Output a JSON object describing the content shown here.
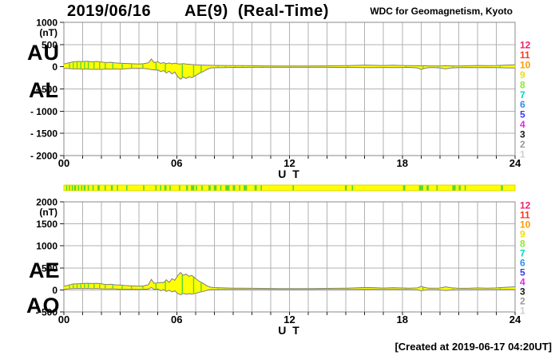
{
  "title": {
    "date": "2019/06/16",
    "main": "AE(9)  (Real-Time)",
    "credit": "WDC for Geomagnetism, Kyoto"
  },
  "footer": {
    "created": "[Created at 2019-06-17 04:20UT]"
  },
  "colors": {
    "band_fill": "#ffff00",
    "band_edge": "#7d7d7d",
    "grid": "#b2b2b2",
    "frame": "#8a8a8a",
    "tick": "#222222",
    "text": "#000000",
    "green_mark": "#55d833",
    "avail_fill": "#ffff00",
    "avail_edge": "#d8d800"
  },
  "station_scale": {
    "values": [
      12,
      11,
      10,
      9,
      8,
      7,
      6,
      5,
      4,
      3,
      2,
      1
    ],
    "colors": [
      "#e8246e",
      "#f53b1e",
      "#ff9c00",
      "#f0e000",
      "#8ee830",
      "#00d8c0",
      "#2e8ef0",
      "#3a3af5",
      "#e822e8",
      "#1a1a1a",
      "#9a9a9a",
      "#cfcfcf"
    ]
  },
  "chart_data": [
    {
      "type": "area",
      "name": "au-al-panel",
      "left_labels": [
        "AU",
        "AL"
      ],
      "unit": "(nT)",
      "ylim": [
        -2000,
        1000
      ],
      "yticks": [
        {
          "v": 1000,
          "label": "1000"
        },
        {
          "v": 500,
          "label": "500"
        },
        {
          "v": 0,
          "label": "0"
        },
        {
          "v": -500,
          "label": "- 500"
        },
        {
          "v": -1000,
          "label": "- 1000"
        },
        {
          "v": -1500,
          "label": "- 1500"
        },
        {
          "v": -2000,
          "label": "- 2000"
        }
      ],
      "xticks": [
        {
          "t": 0,
          "label": "00"
        },
        {
          "t": 6,
          "label": "06"
        },
        {
          "t": 12,
          "label": "12"
        },
        {
          "t": 18,
          "label": "18"
        },
        {
          "t": 24,
          "label": "24"
        }
      ],
      "xlabel": "U T",
      "x": [
        0,
        0.25,
        0.5,
        0.75,
        1,
        1.25,
        1.5,
        1.75,
        2,
        2.25,
        2.5,
        2.75,
        3,
        3.25,
        3.5,
        3.75,
        4,
        4.25,
        4.5,
        4.65,
        4.8,
        5,
        5.15,
        5.3,
        5.45,
        5.6,
        5.75,
        5.9,
        6.05,
        6.2,
        6.35,
        6.5,
        6.65,
        6.8,
        7,
        7.2,
        7.4,
        7.6,
        7.8,
        8,
        8.5,
        9,
        9.5,
        10,
        10.5,
        11,
        11.5,
        12,
        12.5,
        13,
        13.5,
        14,
        14.5,
        15,
        15.5,
        16,
        16.5,
        17,
        17.5,
        18,
        18.4,
        18.8,
        19,
        19.2,
        19.4,
        19.7,
        20,
        20.3,
        20.6,
        21,
        21.5,
        22,
        22.5,
        23,
        23.5,
        24
      ],
      "series": [
        {
          "name": "AU",
          "values": [
            60,
            90,
            110,
            120,
            115,
            125,
            110,
            120,
            105,
            95,
            100,
            85,
            80,
            75,
            70,
            65,
            60,
            70,
            90,
            175,
            95,
            110,
            75,
            95,
            70,
            85,
            65,
            80,
            65,
            60,
            70,
            60,
            55,
            50,
            45,
            40,
            38,
            35,
            32,
            30,
            28,
            25,
            25,
            22,
            20,
            20,
            18,
            18,
            18,
            18,
            20,
            20,
            22,
            25,
            30,
            38,
            32,
            28,
            35,
            28,
            24,
            22,
            20,
            22,
            20,
            20,
            18,
            22,
            20,
            18,
            22,
            28,
            24,
            28,
            38,
            42
          ]
        },
        {
          "name": "AL",
          "values": [
            -35,
            -40,
            -50,
            -45,
            -55,
            -50,
            -60,
            -55,
            -60,
            -50,
            -55,
            -50,
            -55,
            -45,
            -40,
            -38,
            -35,
            -40,
            -50,
            -65,
            -75,
            -70,
            -110,
            -85,
            -140,
            -100,
            -160,
            -120,
            -220,
            -280,
            -230,
            -265,
            -225,
            -245,
            -200,
            -150,
            -110,
            -60,
            -30,
            -22,
            -18,
            -15,
            -15,
            -14,
            -14,
            -13,
            -13,
            -13,
            -13,
            -13,
            -14,
            -14,
            -15,
            -15,
            -16,
            -20,
            -18,
            -16,
            -18,
            -16,
            -15,
            -25,
            -60,
            -35,
            -20,
            -18,
            -25,
            -50,
            -30,
            -18,
            -16,
            -20,
            -16,
            -18,
            -25,
            -30
          ]
        }
      ],
      "green_marks": [
        0.3,
        0.5,
        0.7,
        0.9,
        1.1,
        1.3,
        1.6,
        1.9,
        2.2,
        2.6,
        3.1,
        3.6,
        4.2,
        4.9,
        5.4,
        6.3,
        6.9,
        7.3,
        8.2,
        8.6,
        9.1,
        9.5,
        10.1,
        10.6,
        11.2,
        12.1,
        15.1,
        18.2,
        19.1,
        19.9,
        20.7,
        23.2
      ]
    },
    {
      "type": "availability",
      "name": "data-availability-bar",
      "green_marks": [
        [
          0.15,
          0.07
        ],
        [
          0.3,
          0.07
        ],
        [
          0.45,
          0.07
        ],
        [
          0.6,
          0.1
        ],
        [
          0.78,
          0.07
        ],
        [
          0.95,
          0.07
        ],
        [
          1.1,
          0.1
        ],
        [
          1.3,
          0.07
        ],
        [
          1.55,
          0.07
        ],
        [
          1.85,
          0.12
        ],
        [
          2.2,
          0.07
        ],
        [
          2.55,
          0.1
        ],
        [
          2.85,
          0.07
        ],
        [
          3.35,
          0.07
        ],
        [
          4.25,
          0.07
        ],
        [
          4.9,
          0.07
        ],
        [
          5.15,
          0.07
        ],
        [
          5.4,
          0.12
        ],
        [
          5.65,
          0.07
        ],
        [
          6.15,
          0.07
        ],
        [
          6.55,
          0.1
        ],
        [
          6.85,
          0.18
        ],
        [
          7.05,
          0.07
        ],
        [
          7.35,
          0.07
        ],
        [
          7.75,
          0.12
        ],
        [
          8.05,
          0.15
        ],
        [
          8.35,
          0.07
        ],
        [
          8.7,
          0.22
        ],
        [
          9.05,
          0.12
        ],
        [
          9.35,
          0.07
        ],
        [
          9.65,
          0.18
        ],
        [
          10.2,
          0.12
        ],
        [
          10.5,
          0.07
        ],
        [
          12.2,
          0.07
        ],
        [
          15.0,
          0.1
        ],
        [
          15.35,
          0.07
        ],
        [
          18.1,
          0.12
        ],
        [
          19.0,
          0.22
        ],
        [
          19.35,
          0.12
        ],
        [
          19.85,
          0.07
        ],
        [
          20.75,
          0.18
        ],
        [
          21.05,
          0.1
        ],
        [
          21.35,
          0.07
        ],
        [
          23.3,
          0.1
        ]
      ]
    },
    {
      "type": "area",
      "name": "ae-ao-panel",
      "left_labels": [
        "AE",
        "AO"
      ],
      "unit": "(nT)",
      "ylim": [
        -500,
        2000
      ],
      "yticks": [
        {
          "v": 2000,
          "label": "2000"
        },
        {
          "v": 1500,
          "label": "1500"
        },
        {
          "v": 1000,
          "label": "1000"
        },
        {
          "v": 500,
          "label": "500"
        },
        {
          "v": 0,
          "label": "0"
        },
        {
          "v": -500,
          "label": "- 500"
        }
      ],
      "xticks": [
        {
          "t": 0,
          "label": "00"
        },
        {
          "t": 6,
          "label": "06"
        },
        {
          "t": 12,
          "label": "12"
        },
        {
          "t": 18,
          "label": "18"
        },
        {
          "t": 24,
          "label": "24"
        }
      ],
      "xlabel": "U T",
      "x": [
        0,
        0.25,
        0.5,
        0.75,
        1,
        1.25,
        1.5,
        1.75,
        2,
        2.25,
        2.5,
        2.75,
        3,
        3.25,
        3.5,
        3.75,
        4,
        4.25,
        4.5,
        4.65,
        4.8,
        5,
        5.15,
        5.3,
        5.45,
        5.6,
        5.75,
        5.9,
        6.05,
        6.2,
        6.35,
        6.5,
        6.65,
        6.8,
        7,
        7.2,
        7.4,
        7.6,
        7.8,
        8,
        8.5,
        9,
        9.5,
        10,
        10.5,
        11,
        11.5,
        12,
        12.5,
        13,
        13.5,
        14,
        14.5,
        15,
        15.5,
        16,
        16.5,
        17,
        17.5,
        18,
        18.4,
        18.8,
        19,
        19.2,
        19.4,
        19.7,
        20,
        20.3,
        20.6,
        21,
        21.5,
        22,
        22.5,
        23,
        23.5,
        24
      ],
      "series": [
        {
          "name": "AE",
          "values": [
            80,
            110,
            135,
            140,
            145,
            150,
            145,
            150,
            140,
            120,
            130,
            115,
            110,
            100,
            95,
            90,
            85,
            95,
            120,
            240,
            150,
            160,
            170,
            165,
            230,
            170,
            255,
            220,
            320,
            395,
            330,
            360,
            310,
            330,
            260,
            195,
            150,
            95,
            62,
            52,
            45,
            40,
            40,
            36,
            34,
            32,
            30,
            30,
            30,
            30,
            32,
            34,
            36,
            40,
            45,
            55,
            50,
            42,
            50,
            44,
            40,
            45,
            80,
            55,
            40,
            38,
            42,
            70,
            48,
            36,
            36,
            45,
            40,
            45,
            60,
            70
          ]
        },
        {
          "name": "AO",
          "values": [
            15,
            25,
            30,
            35,
            30,
            35,
            28,
            32,
            25,
            22,
            25,
            20,
            15,
            15,
            14,
            14,
            12,
            15,
            20,
            55,
            10,
            20,
            -18,
            5,
            -35,
            -8,
            -48,
            -20,
            -78,
            -110,
            -80,
            -100,
            -85,
            -98,
            -78,
            -55,
            -35,
            -10,
            5,
            8,
            8,
            8,
            8,
            6,
            5,
            5,
            4,
            4,
            4,
            4,
            5,
            5,
            6,
            7,
            8,
            10,
            9,
            7,
            9,
            8,
            6,
            0,
            -18,
            -5,
            2,
            3,
            -2,
            -12,
            -4,
            2,
            3,
            5,
            4,
            6,
            8,
            8
          ]
        }
      ],
      "green_marks": [
        0.3,
        0.5,
        0.7,
        0.9,
        1.1,
        1.3,
        1.6,
        1.9,
        2.2,
        2.6,
        3.1,
        3.6,
        4.2,
        4.9,
        5.4,
        6.3,
        6.9,
        7.3,
        8.2,
        8.6,
        9.1,
        9.5,
        10.1,
        10.6,
        11.2,
        12.1,
        15.1,
        18.2,
        19.1,
        19.9,
        20.7,
        23.2
      ]
    }
  ]
}
